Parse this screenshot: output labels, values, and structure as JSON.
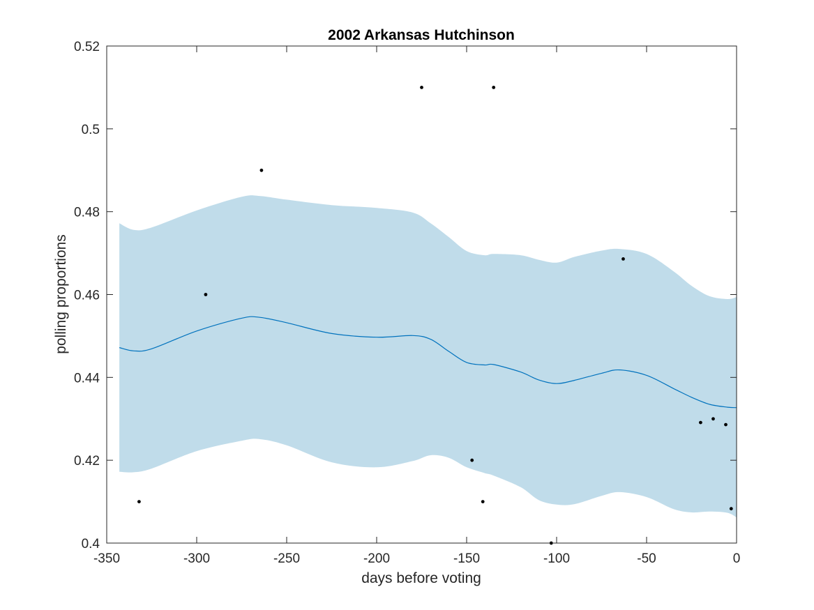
{
  "chart_data": {
    "type": "line",
    "title": "2002 Arkansas Hutchinson",
    "xlabel": "days before voting",
    "ylabel": "polling proportions",
    "xlim": [
      -350,
      0
    ],
    "ylim": [
      0.4,
      0.52
    ],
    "xticks": [
      -350,
      -300,
      -250,
      -200,
      -150,
      -100,
      -50,
      0
    ],
    "xtick_labels": [
      "-350",
      "-300",
      "-250",
      "-200",
      "-150",
      "-100",
      "-50",
      "0"
    ],
    "yticks": [
      0.4,
      0.42,
      0.44,
      0.46,
      0.48,
      0.5,
      0.52
    ],
    "ytick_labels": [
      "0.4",
      "0.42",
      "0.44",
      "0.46",
      "0.48",
      "0.5",
      "0.52"
    ],
    "grid": false,
    "colors": {
      "line": "#0072bd",
      "band": "#c0dcea",
      "points": "#000000",
      "axes": "#262626"
    },
    "band": {
      "x": [
        -343,
        -335,
        -325,
        -300,
        -275,
        -265,
        -250,
        -225,
        -200,
        -180,
        -170,
        -160,
        -150,
        -140,
        -135,
        -120,
        -110,
        -100,
        -90,
        -75,
        -65,
        -50,
        -35,
        -25,
        -15,
        -5,
        0
      ],
      "upper": [
        0.4772,
        0.4756,
        0.4762,
        0.4803,
        0.4836,
        0.4838,
        0.4829,
        0.4816,
        0.4809,
        0.4798,
        0.4772,
        0.4739,
        0.4705,
        0.4695,
        0.4698,
        0.4695,
        0.4684,
        0.4677,
        0.4691,
        0.4706,
        0.471,
        0.4698,
        0.4656,
        0.4621,
        0.4596,
        0.4589,
        0.4594
      ],
      "lower": [
        0.4172,
        0.4171,
        0.418,
        0.4222,
        0.4247,
        0.4251,
        0.4236,
        0.4195,
        0.4183,
        0.4198,
        0.4212,
        0.4206,
        0.4183,
        0.4169,
        0.4163,
        0.4135,
        0.4104,
        0.4093,
        0.4094,
        0.4114,
        0.4123,
        0.4111,
        0.4082,
        0.4074,
        0.4076,
        0.4073,
        0.4062
      ]
    },
    "series": [
      {
        "x": [
          -343,
          -335,
          -325,
          -300,
          -275,
          -265,
          -250,
          -225,
          -200,
          -180,
          -170,
          -160,
          -150,
          -140,
          -135,
          -120,
          -110,
          -100,
          -90,
          -75,
          -65,
          -50,
          -35,
          -25,
          -15,
          -5,
          0
        ],
        "values": [
          0.4472,
          0.4464,
          0.4469,
          0.4512,
          0.4543,
          0.4545,
          0.4532,
          0.4506,
          0.4497,
          0.4501,
          0.4492,
          0.4463,
          0.4436,
          0.443,
          0.4431,
          0.4413,
          0.4394,
          0.4385,
          0.4393,
          0.441,
          0.4418,
          0.4405,
          0.4373,
          0.4352,
          0.4335,
          0.4328,
          0.4327
        ]
      }
    ],
    "points": {
      "x": [
        -332,
        -295,
        -264,
        -175,
        -147,
        -141,
        -135,
        -103,
        -63,
        -20,
        -13,
        -6,
        -3
      ],
      "y": [
        0.41,
        0.46,
        0.49,
        0.51,
        0.42,
        0.41,
        0.51,
        0.4,
        0.4686,
        0.4291,
        0.43,
        0.4286,
        0.4083
      ]
    }
  }
}
